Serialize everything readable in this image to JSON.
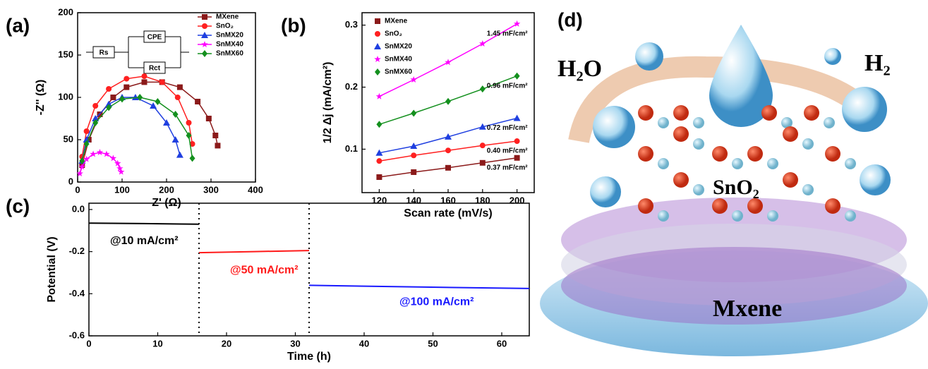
{
  "chart_data": [
    {
      "type": "scatter",
      "panel_label": "(a)",
      "x_label": "Z' (Ω)",
      "y_label": "-Z'' (Ω)",
      "xlim": [
        0,
        400
      ],
      "xticks": [
        0,
        100,
        200,
        300,
        400
      ],
      "ylim": [
        0,
        200
      ],
      "yticks": [
        0,
        50,
        100,
        150,
        200
      ],
      "legend": "upper right",
      "circuit": [
        "Rs",
        "CPE",
        "Rct"
      ],
      "series": [
        {
          "name": "MXene",
          "color": "#8b1a1a",
          "marker": "square",
          "x": [
            10,
            25,
            50,
            80,
            110,
            150,
            190,
            230,
            270,
            295,
            310,
            315
          ],
          "values": [
            20,
            50,
            80,
            100,
            112,
            118,
            118,
            112,
            95,
            75,
            55,
            43
          ]
        },
        {
          "name": "SnO₂",
          "color": "#ff2020",
          "marker": "circle",
          "x": [
            10,
            20,
            40,
            70,
            110,
            150,
            190,
            225,
            250,
            258
          ],
          "values": [
            30,
            60,
            90,
            110,
            122,
            125,
            118,
            100,
            70,
            45
          ]
        },
        {
          "name": "SnMX20",
          "color": "#1f3fe0",
          "marker": "triangle",
          "x": [
            10,
            20,
            40,
            70,
            100,
            130,
            170,
            200,
            220,
            230
          ],
          "values": [
            25,
            50,
            75,
            92,
            100,
            100,
            90,
            70,
            50,
            32
          ]
        },
        {
          "name": "SnMX40",
          "color": "#ff00ff",
          "marker": "star",
          "x": [
            5,
            10,
            20,
            35,
            50,
            65,
            80,
            90,
            95,
            98
          ],
          "values": [
            10,
            18,
            27,
            33,
            35,
            33,
            28,
            22,
            16,
            12
          ]
        },
        {
          "name": "SnMX60",
          "color": "#14901e",
          "marker": "diamond",
          "x": [
            10,
            20,
            40,
            70,
            100,
            140,
            180,
            220,
            250,
            258
          ],
          "values": [
            25,
            45,
            70,
            88,
            98,
            100,
            95,
            80,
            55,
            28
          ]
        }
      ]
    },
    {
      "type": "scatter",
      "panel_label": "(b)",
      "x_label": "Scan rate (mV/s)",
      "y_label": "1/2 Δj (mA/cm²)",
      "xlim": [
        110,
        210
      ],
      "xticks": [
        120,
        140,
        160,
        180,
        200
      ],
      "ylim": [
        0.03,
        0.32
      ],
      "yticks": [
        0.1,
        0.2,
        0.3
      ],
      "legend": "upper left",
      "series": [
        {
          "name": "MXene",
          "color": "#8b1a1a",
          "marker": "square",
          "x": [
            120,
            140,
            160,
            180,
            200
          ],
          "values": [
            0.055,
            0.063,
            0.07,
            0.078,
            0.086
          ],
          "annotation": "0.37 mF/cm²"
        },
        {
          "name": "SnO₂",
          "color": "#ff2020",
          "marker": "circle",
          "x": [
            120,
            140,
            160,
            180,
            200
          ],
          "values": [
            0.081,
            0.09,
            0.098,
            0.106,
            0.113
          ],
          "annotation": "0.40 mF/cm²"
        },
        {
          "name": "SnMX20",
          "color": "#1f3fe0",
          "marker": "triangle",
          "x": [
            120,
            140,
            160,
            180,
            200
          ],
          "values": [
            0.094,
            0.105,
            0.12,
            0.136,
            0.15
          ],
          "annotation": "0.72 mF/cm²"
        },
        {
          "name": "SnMX40",
          "color": "#ff00ff",
          "marker": "star",
          "x": [
            120,
            140,
            160,
            180,
            200
          ],
          "values": [
            0.185,
            0.212,
            0.24,
            0.27,
            0.302
          ],
          "annotation": "1.45 mF/cm²"
        },
        {
          "name": "SnMX60",
          "color": "#14901e",
          "marker": "diamond",
          "x": [
            120,
            140,
            160,
            180,
            200
          ],
          "values": [
            0.14,
            0.158,
            0.177,
            0.197,
            0.218
          ],
          "annotation": "0.96 mF/cm²"
        }
      ]
    },
    {
      "type": "line",
      "panel_label": "(c)",
      "x_label": "Time (h)",
      "y_label": "Potential (V)",
      "xlim": [
        0,
        64
      ],
      "xticks": [
        0,
        10,
        20,
        30,
        40,
        50,
        60
      ],
      "ylim": [
        -0.6,
        0.03
      ],
      "yticks": [
        {
          "value": 0,
          "label": "0.0"
        },
        -0.2,
        -0.4,
        -0.6
      ],
      "vlines": [
        16,
        32
      ],
      "x": [
        0,
        8,
        16,
        16,
        24,
        32,
        32,
        48,
        64
      ],
      "series": [
        {
          "color": "#000000",
          "values": [
            -0.065,
            -0.067,
            -0.07,
            null,
            null,
            null,
            null,
            null,
            null
          ],
          "annotation": "@10 mA/cm²"
        },
        {
          "color": "#ff1a1a",
          "values": [
            null,
            null,
            null,
            -0.205,
            -0.2,
            -0.195,
            null,
            null,
            null
          ],
          "annotation": "@50 mA/cm²"
        },
        {
          "color": "#1a1aff",
          "values": [
            null,
            null,
            null,
            null,
            null,
            null,
            -0.36,
            -0.368,
            -0.375
          ],
          "annotation": "@100 mA/cm²"
        }
      ]
    }
  ],
  "illustration": {
    "panel_label": "(d)",
    "labels": [
      "H₂O",
      "H₂",
      "SnO₂",
      "Mxene"
    ]
  }
}
